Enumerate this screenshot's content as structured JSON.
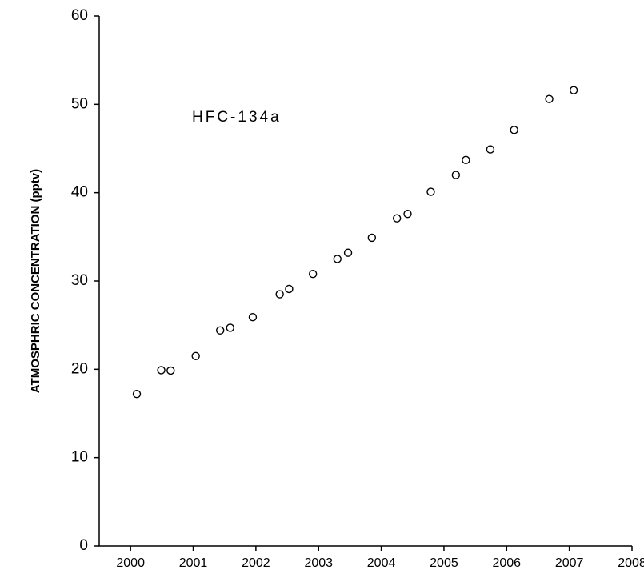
{
  "chart_data": {
    "type": "scatter",
    "y_label": "ATMOSPHRIC CONCENTRATION (pptv)",
    "annotation": "HFC-134a",
    "x": [
      2000.1,
      2000.49,
      2000.64,
      2001.04,
      2001.43,
      2001.59,
      2001.95,
      2002.38,
      2002.53,
      2002.91,
      2003.3,
      2003.47,
      2003.85,
      2004.25,
      2004.42,
      2004.79,
      2005.19,
      2005.35,
      2005.74,
      2006.12,
      2006.68,
      2007.07
    ],
    "values": [
      17.2,
      19.9,
      19.85,
      21.5,
      24.4,
      24.7,
      25.9,
      28.5,
      29.1,
      30.8,
      32.5,
      33.2,
      34.9,
      37.1,
      37.6,
      40.1,
      42.0,
      43.7,
      44.9,
      47.1,
      50.6,
      51.6
    ],
    "color": "#000000",
    "xlim": [
      1999.5,
      2008
    ],
    "xticks": [
      2000,
      2001,
      2002,
      2003,
      2004,
      2005,
      2006,
      2007,
      2008
    ],
    "ylim": [
      0,
      60
    ],
    "yticks": [
      0,
      10,
      20,
      30,
      40,
      50,
      60
    ]
  }
}
